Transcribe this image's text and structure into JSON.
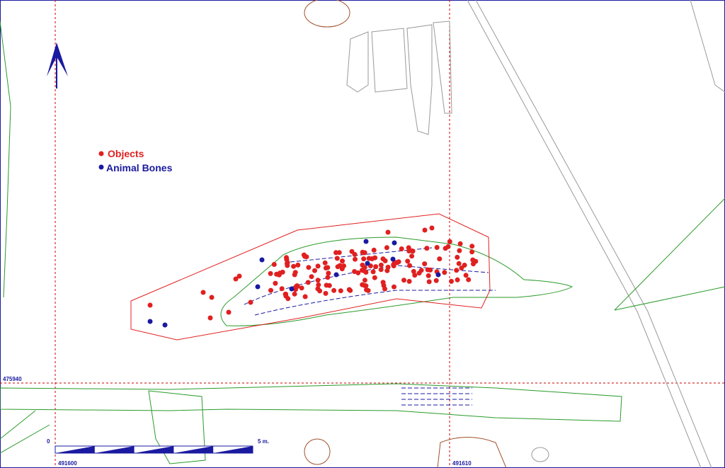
{
  "legend": {
    "items": [
      {
        "label": "Objects"
      },
      {
        "label": "Animal Bones"
      }
    ]
  },
  "grid_labels": {
    "northing": "475940",
    "easting_1": "491600",
    "easting_2": "491610"
  },
  "scale_bar": {
    "start": "0",
    "end": "5 m."
  }
}
